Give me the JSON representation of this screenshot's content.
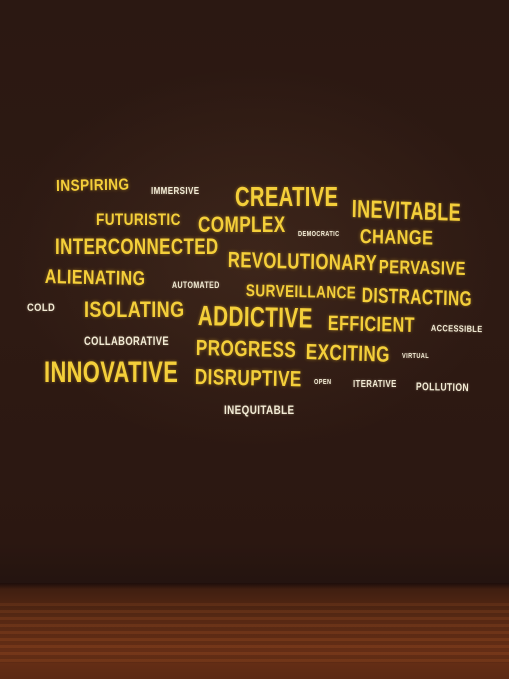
{
  "words": {
    "inspiring": "INSPIRING",
    "immersive": "IMMERSIVE",
    "creative": "CREATIVE",
    "inevitable": "INEVITABLE",
    "futuristic": "FUTURISTIC",
    "complex": "COMPLEX",
    "democratic": "DEMOCRATIC",
    "change": "CHANGE",
    "interconnected": "INTERCONNECTED",
    "revolutionary": "REVOLUTIONARY",
    "pervasive": "PERVASIVE",
    "alienating": "ALIENATING",
    "automated": "AUTOMATED",
    "surveillance": "SURVEILLANCE",
    "distracting": "DISTRACTING",
    "cold": "COLD",
    "isolating": "ISOLATING",
    "addictive": "ADDICTIVE",
    "efficient": "EFFICIENT",
    "accessible": "ACCESSIBLE",
    "collaborative": "COLLABORATIVE",
    "progress": "PROGRESS",
    "exciting": "EXCITING",
    "virtual": "VIRTUAL",
    "innovative": "INNOVATIVE",
    "disruptive": "DISRUPTIVE",
    "open": "OPEN",
    "iterative": "ITERATIVE",
    "pollution": "POLLUTION",
    "inequitable": "INEQUITABLE"
  },
  "colors": {
    "wall": "#2a1712",
    "word_yellow": "#f4cf3a",
    "word_white": "#f3ecd6",
    "floor": "#5a2a14"
  }
}
